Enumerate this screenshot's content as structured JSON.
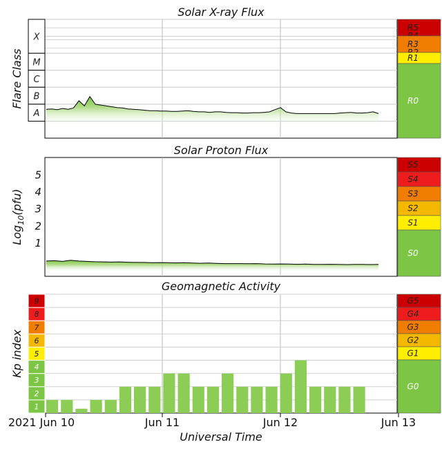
{
  "chart_data": [
    {
      "type": "area",
      "title": "Solar X-ray Flux",
      "ylabel": "Flare Class",
      "y_log_scale": true,
      "ylim_log10_wm2": [
        -9,
        -2
      ],
      "classes": [
        {
          "label": "X",
          "min": -4,
          "max": -2
        },
        {
          "label": "M",
          "min": -5,
          "max": -4
        },
        {
          "label": "C",
          "min": -6,
          "max": -5
        },
        {
          "label": "B",
          "min": -7,
          "max": -6
        },
        {
          "label": "A",
          "min": -8,
          "max": -7
        }
      ],
      "series": [
        {
          "values_log10_wm2": [
            -7.3,
            -7.28,
            -7.32,
            -7.25,
            -7.3,
            -7.22,
            -6.8,
            -7.1,
            -6.55,
            -7.0,
            -7.05,
            -7.1,
            -7.15,
            -7.2,
            -7.22,
            -7.28,
            -7.3,
            -7.32,
            -7.35,
            -7.38,
            -7.38,
            -7.4,
            -7.4,
            -7.42,
            -7.42,
            -7.4,
            -7.38,
            -7.42,
            -7.45,
            -7.45,
            -7.48,
            -7.45,
            -7.45,
            -7.48,
            -7.5,
            -7.5,
            -7.52,
            -7.52,
            -7.5,
            -7.5,
            -7.48,
            -7.45,
            -7.32,
            -7.2,
            -7.45,
            -7.52,
            -7.55,
            -7.55,
            -7.55,
            -7.55,
            -7.55,
            -7.55,
            -7.55,
            -7.55,
            -7.52,
            -7.5,
            -7.48,
            -7.52,
            -7.52,
            -7.5,
            -7.45,
            -7.55
          ]
        }
      ],
      "scale_labels": [
        "R5",
        "R4",
        "R3",
        "R2",
        "R1",
        "R0"
      ],
      "colors": {
        "fill": "#7dc545",
        "level5": "#cc0000",
        "level4": "#ee1c1c",
        "level3": "#f07c00",
        "level2": "#f5b800",
        "level1": "#ffee00",
        "level0": "#7dc545"
      }
    },
    {
      "type": "area",
      "title": "Solar Proton Flux",
      "ylabel": "Log",
      "ylabel_subscript": "10",
      "ylabel_unit": "(pfu)",
      "ylim": [
        -1,
        6
      ],
      "ytick_labels": [
        "1",
        "2",
        "3",
        "4",
        "5"
      ],
      "series": [
        {
          "values": [
            -0.1,
            -0.08,
            -0.12,
            -0.05,
            -0.1,
            -0.12,
            -0.14,
            -0.15,
            -0.16,
            -0.15,
            -0.17,
            -0.18,
            -0.18,
            -0.2,
            -0.19,
            -0.2,
            -0.21,
            -0.2,
            -0.22,
            -0.23,
            -0.22,
            -0.24,
            -0.25,
            -0.25,
            -0.25,
            -0.26,
            -0.25,
            -0.27,
            -0.28,
            -0.27,
            -0.28,
            -0.29,
            -0.28,
            -0.3,
            -0.3,
            -0.29,
            -0.3,
            -0.31,
            -0.3,
            -0.3,
            -0.31,
            -0.3
          ]
        }
      ],
      "scale_labels": [
        "S5",
        "S4",
        "S3",
        "S2",
        "S1",
        "S0"
      ]
    },
    {
      "type": "bar",
      "title": "Geomagnetic Activity",
      "ylabel": "Kp index",
      "xlabel": "Universal Time",
      "ylim": [
        0,
        9
      ],
      "ytick_labels": [
        "1",
        "2",
        "3",
        "4",
        "5",
        "6",
        "7",
        "8",
        "9"
      ],
      "xtick_labels": [
        "2021 Jun 10",
        "Jun 11",
        "Jun 12",
        "Jun 13"
      ],
      "values": [
        1.0,
        1.0,
        0.33,
        1.0,
        1.0,
        2.0,
        2.0,
        2.0,
        3.0,
        3.0,
        2.0,
        2.0,
        3.0,
        2.0,
        2.0,
        2.0,
        3.0,
        4.0,
        2.0,
        2.0,
        2.0,
        2.0
      ],
      "scale_labels": [
        "G5",
        "G4",
        "G3",
        "G2",
        "G1",
        "G0"
      ]
    }
  ]
}
